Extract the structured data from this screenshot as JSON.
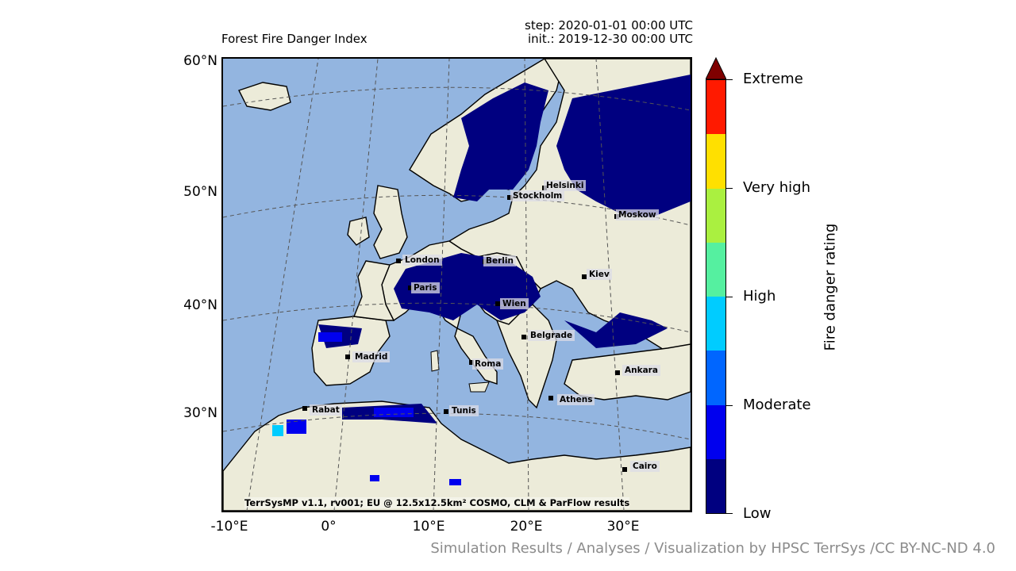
{
  "title": "Forest Fire Danger Index",
  "step": "step: 2020-01-01 00:00 UTC",
  "init": "init.: 2019-12-30 00:00 UTC",
  "lat_labels": [
    "60°N",
    "50°N",
    "40°N",
    "30°N"
  ],
  "lon_labels": [
    "-10°E",
    "0°",
    "10°E",
    "20°E",
    "30°E"
  ],
  "colorbar": {
    "title": "Fire danger rating",
    "labels": [
      "Extreme",
      "Very high",
      "High",
      "Moderate",
      "Low"
    ],
    "colors": [
      "#000080",
      "#0000ee",
      "#0066ff",
      "#00ccff",
      "#55f0a0",
      "#aaf040",
      "#ffe000",
      "#ff1a00",
      "#7f0000"
    ]
  },
  "cities": [
    "Helsinki",
    "Stockholm",
    "Moskow",
    "London",
    "Berlin",
    "Kiev",
    "Paris",
    "Wien",
    "Belgrade",
    "Madrid",
    "Roma",
    "Ankara",
    "Athens",
    "Rabat",
    "Tunis",
    "Cairo"
  ],
  "credit": "TerrSysMP v1.1, rv001; EU @ 12.5x12.5km² COSMO, CLM & ParFlow results",
  "footer": "Simulation Results / Analyses / Visualization by HPSC TerrSys /CC BY-NC-ND 4.0",
  "colors": {
    "ocean": "#93b5e0",
    "land": "#ecebd9",
    "low": "#000080"
  }
}
